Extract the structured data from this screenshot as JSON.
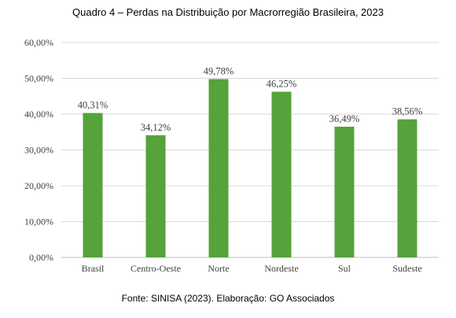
{
  "chart_data": {
    "type": "bar",
    "title": "Quadro 4 – Perdas na Distribuição por Macrorregião Brasileira, 2023",
    "source": "Fonte: SINISA (2023). Elaboração: GO Associados",
    "categories": [
      "Brasil",
      "Centro-Oeste",
      "Norte",
      "Nordeste",
      "Sul",
      "Sudeste"
    ],
    "values": [
      40.31,
      34.12,
      49.78,
      46.25,
      36.49,
      38.56
    ],
    "value_labels": [
      "40,31%",
      "34,12%",
      "49,78%",
      "46,25%",
      "36,49%",
      "38,56%"
    ],
    "ylim": [
      0,
      60
    ],
    "yticks": [
      0,
      10,
      20,
      30,
      40,
      50,
      60
    ],
    "ytick_labels": [
      "0,00%",
      "10,00%",
      "20,00%",
      "30,00%",
      "40,00%",
      "50,00%",
      "60,00%"
    ],
    "xlabel": "",
    "ylabel": "",
    "grid": true,
    "bar_color": "#55a33a",
    "grid_color": "#d9d9d9"
  }
}
